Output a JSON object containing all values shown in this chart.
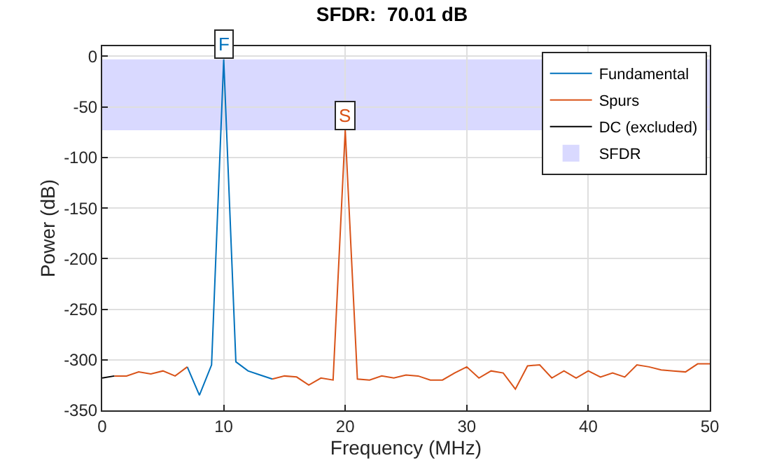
{
  "chart_data": {
    "type": "line",
    "title": "SFDR:  70.01 dB",
    "xlabel": "Frequency (MHz)",
    "ylabel": "Power (dB)",
    "xlim": [
      0,
      50
    ],
    "xticks": [
      0,
      10,
      20,
      30,
      40,
      50
    ],
    "ylim": [
      -350,
      10
    ],
    "yticks": [
      0,
      -50,
      -100,
      -150,
      -200,
      -250,
      -300,
      -350
    ],
    "grid": true,
    "legend": "top right",
    "line_style": "solid",
    "marker": "none",
    "bands": [
      {
        "axis": "y",
        "from": -73,
        "to": -3,
        "label": "SFDR",
        "color": "#d9d9ff"
      }
    ],
    "series": [
      {
        "name": "Fundamental",
        "color": "#0072bd",
        "x": [
          7,
          8,
          9,
          10,
          11,
          12,
          13,
          14
        ],
        "values": [
          -307,
          -335,
          -305,
          -3,
          -302,
          -311,
          -315,
          -319
        ]
      },
      {
        "name": "Spurs",
        "color": "#d95319",
        "x": [
          1,
          2,
          3,
          4,
          5,
          6,
          7,
          8,
          9,
          10,
          11,
          12,
          13,
          14,
          15,
          16,
          17,
          18,
          19,
          20,
          21,
          22,
          23,
          24,
          25,
          26,
          27,
          28,
          29,
          30,
          31,
          32,
          33,
          34,
          35,
          36,
          37,
          38,
          39,
          40,
          41,
          42,
          43,
          44,
          45,
          46,
          47,
          48,
          49,
          50
        ],
        "values": [
          -316,
          -316,
          -312,
          -314,
          -311,
          -316,
          -307,
          null,
          null,
          null,
          null,
          null,
          null,
          -319,
          -316,
          -317,
          -325,
          -318,
          -320,
          -73,
          -319,
          -320,
          -316,
          -318,
          -315,
          -316,
          -320,
          -320,
          -313,
          -307,
          -318,
          -311,
          -313,
          -329,
          -306,
          -305,
          -318,
          -311,
          -318,
          -311,
          -317,
          -313,
          -317,
          -305,
          -307,
          -310,
          -311,
          -312,
          -304,
          -304
        ]
      },
      {
        "name": "DC (excluded)",
        "color": "#000000",
        "x": [
          0,
          1
        ],
        "values": [
          -318,
          -316
        ]
      }
    ],
    "annotations": [
      {
        "text": "F",
        "x": 10,
        "y": -3
      },
      {
        "text": "S",
        "x": 20,
        "y": -73
      }
    ]
  }
}
